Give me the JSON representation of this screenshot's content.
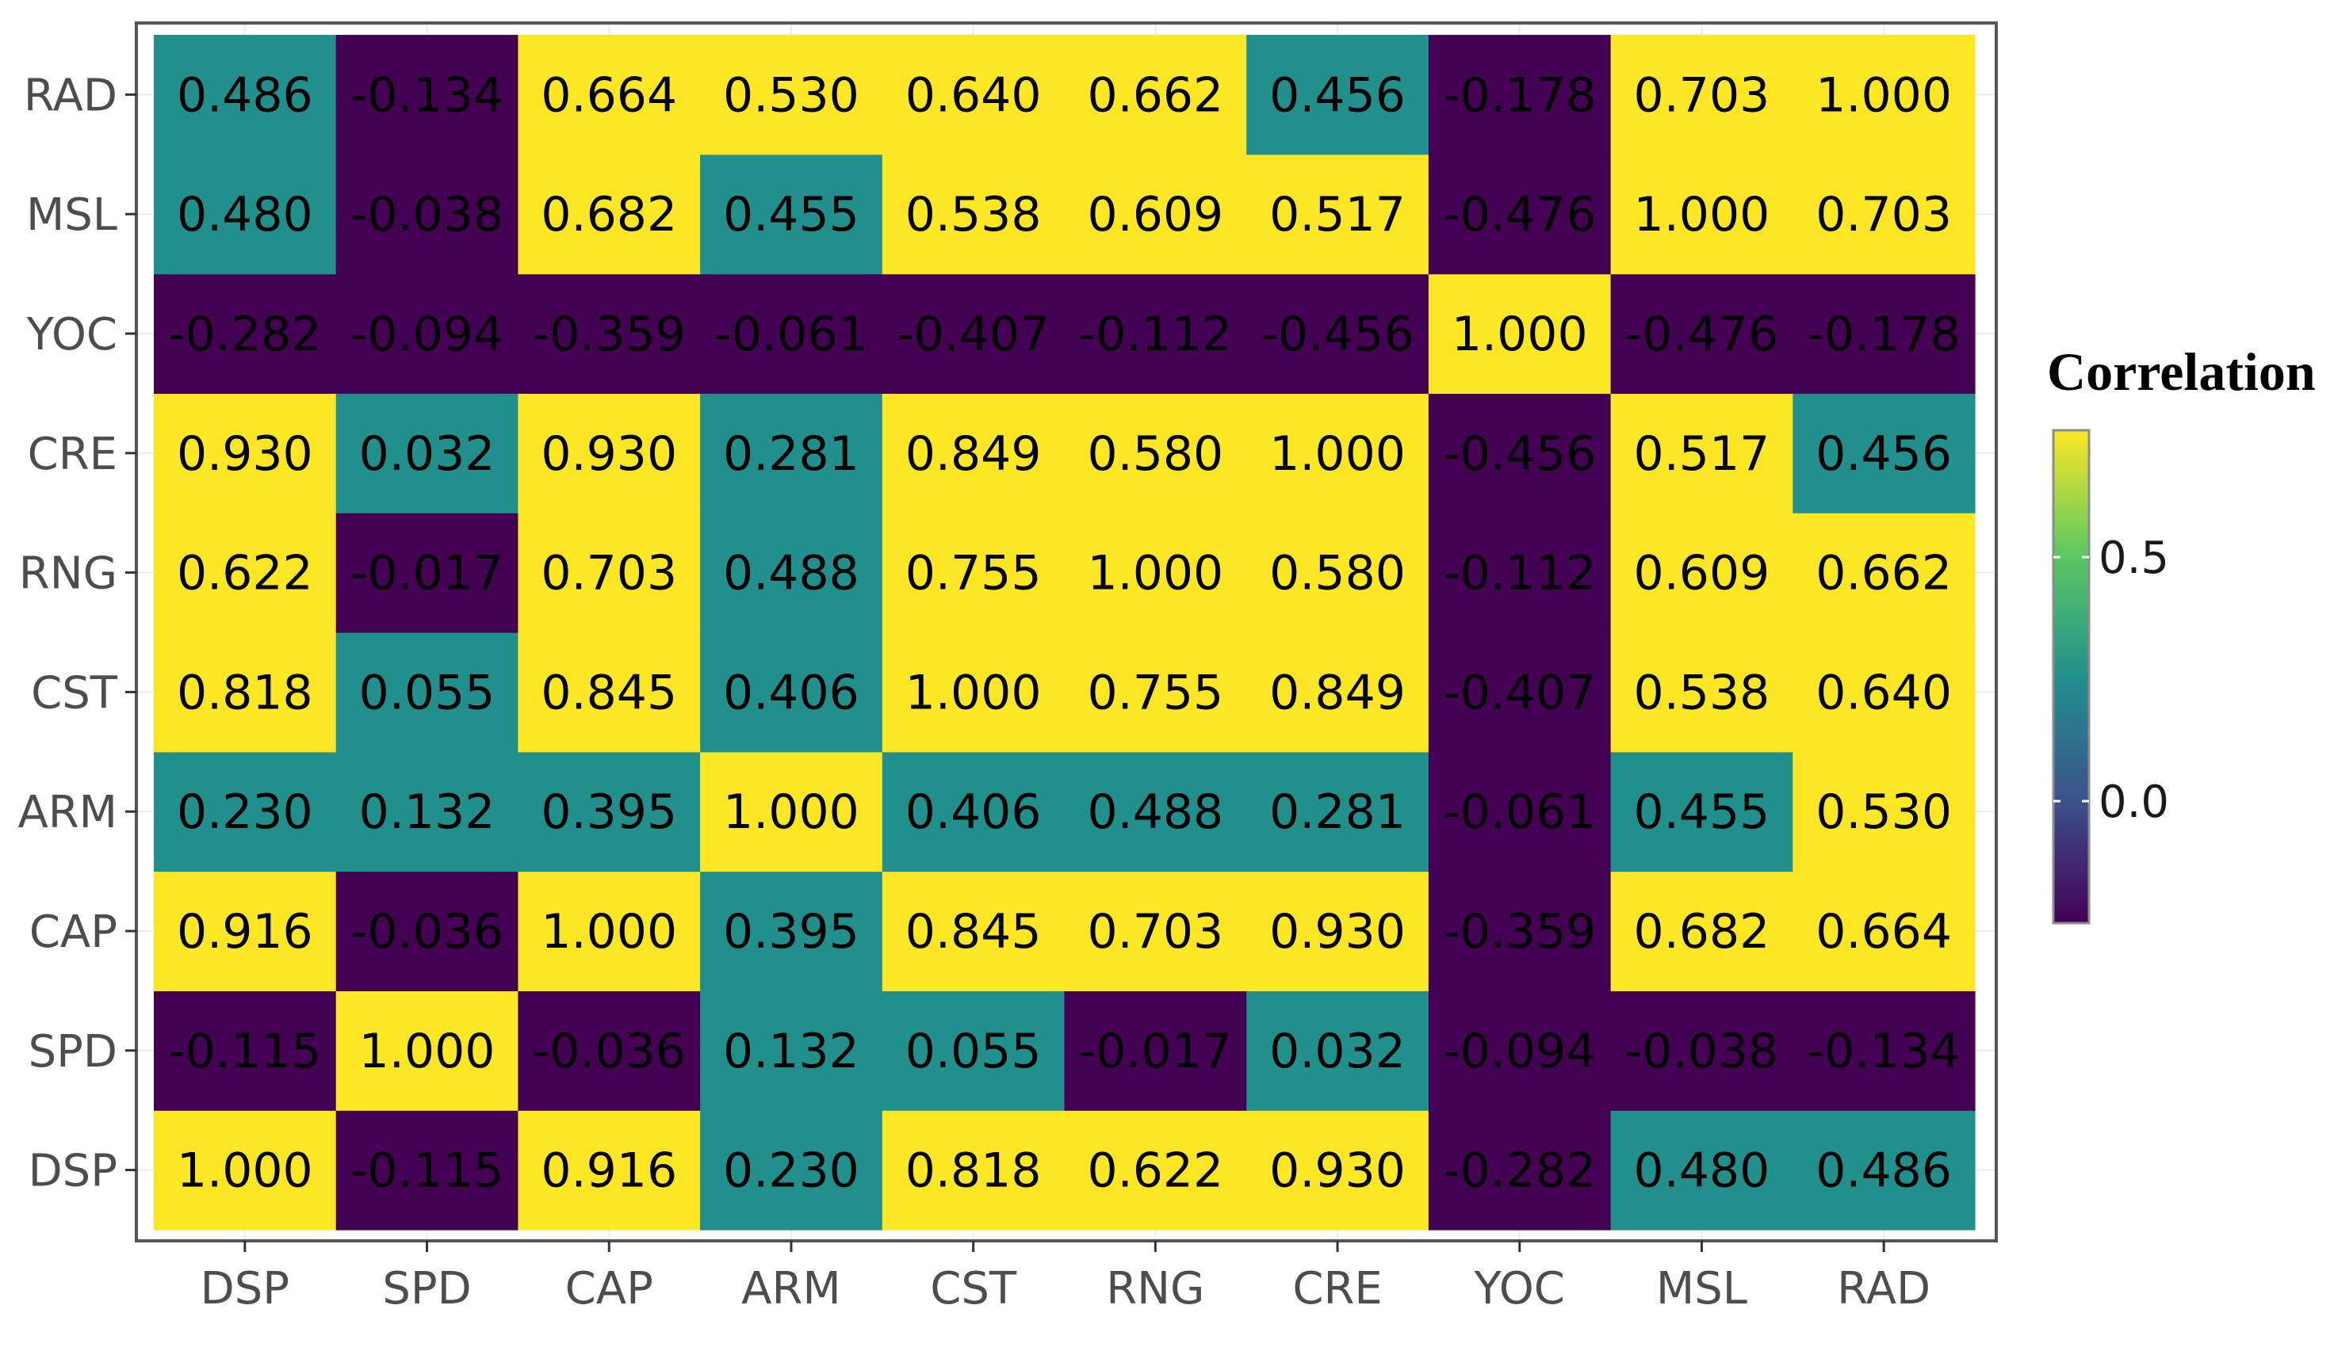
{
  "chart_data": {
    "type": "heatmap",
    "title": "",
    "xlabel": "",
    "ylabel": "",
    "x_categories": [
      "DSP",
      "SPD",
      "CAP",
      "ARM",
      "CST",
      "RNG",
      "CRE",
      "YOC",
      "MSL",
      "RAD"
    ],
    "y_categories": [
      "DSP",
      "SPD",
      "CAP",
      "ARM",
      "CST",
      "RNG",
      "CRE",
      "YOC",
      "MSL",
      "RAD"
    ],
    "values": [
      [
        1.0,
        -0.115,
        0.916,
        0.23,
        0.818,
        0.622,
        0.93,
        -0.282,
        0.48,
        0.486
      ],
      [
        -0.115,
        1.0,
        -0.036,
        0.132,
        0.055,
        -0.017,
        0.032,
        -0.094,
        -0.038,
        -0.134
      ],
      [
        0.916,
        -0.036,
        1.0,
        0.395,
        0.845,
        0.703,
        0.93,
        -0.359,
        0.682,
        0.664
      ],
      [
        0.23,
        0.132,
        0.395,
        1.0,
        0.406,
        0.488,
        0.281,
        -0.061,
        0.455,
        0.53
      ],
      [
        0.818,
        0.055,
        0.845,
        0.406,
        1.0,
        0.755,
        0.849,
        -0.407,
        0.538,
        0.64
      ],
      [
        0.622,
        -0.017,
        0.703,
        0.488,
        0.755,
        1.0,
        0.58,
        -0.112,
        0.609,
        0.662
      ],
      [
        0.93,
        0.032,
        0.93,
        0.281,
        0.849,
        0.58,
        1.0,
        -0.456,
        0.517,
        0.456
      ],
      [
        -0.282,
        -0.094,
        -0.359,
        -0.061,
        -0.407,
        -0.112,
        -0.456,
        1.0,
        -0.476,
        -0.178
      ],
      [
        0.48,
        -0.038,
        0.682,
        0.455,
        0.538,
        0.609,
        0.517,
        -0.476,
        1.0,
        0.703
      ],
      [
        0.486,
        -0.134,
        0.664,
        0.53,
        0.64,
        0.662,
        0.456,
        -0.178,
        0.703,
        1.0
      ]
    ],
    "value_format": "3 decimals",
    "color_bins": [
      {
        "below": 0.0,
        "color": "#440154"
      },
      {
        "below": 0.5,
        "color": "#21908C"
      },
      {
        "below": 99,
        "color": "#FDE725"
      }
    ],
    "legend": {
      "title": "Correlation",
      "placement": "right",
      "ticks": [
        {
          "value": 0.5,
          "label": "0.5"
        },
        {
          "value": 0.0,
          "label": "0.0"
        }
      ],
      "range": [
        -0.25,
        0.76
      ],
      "gradient": [
        "#440154",
        "#3B528B",
        "#21908C",
        "#5DC963",
        "#FDE725"
      ]
    },
    "grid": true,
    "colors": {
      "panel_border": "#555555",
      "tick_text": "#4d4d4d",
      "cell_text": "#000000",
      "gridline": "#ebebeb"
    }
  }
}
